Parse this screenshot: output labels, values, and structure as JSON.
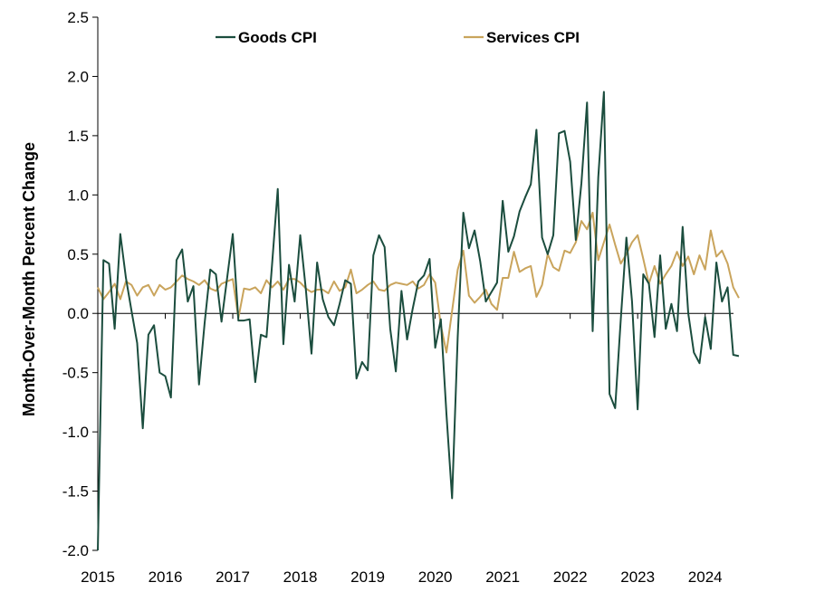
{
  "chart_data": {
    "type": "line",
    "title": "",
    "xlabel": "",
    "ylabel": "Month-Over-Month Percent Change",
    "ylim": [
      -2.0,
      2.5
    ],
    "xlim": [
      2015.0,
      2024.42
    ],
    "yticks": [
      "-2.0",
      "-1.5",
      "-1.0",
      "-0.5",
      "0.0",
      "0.5",
      "1.0",
      "1.5",
      "2.0",
      "2.5"
    ],
    "xticks": [
      "2015",
      "2016",
      "2017",
      "2018",
      "2019",
      "2020",
      "2021",
      "2022",
      "2023",
      "2024"
    ],
    "legend": "top",
    "colors": {
      "goods": "#1b4d3e",
      "services": "#c9a45c",
      "axis": "#000000"
    },
    "series": [
      {
        "name": "Goods CPI",
        "color": "#1b4d3e",
        "start": 2015.0,
        "step": 0.08333,
        "values": [
          -2.0,
          0.45,
          0.42,
          -0.13,
          0.67,
          0.3,
          0.02,
          -0.25,
          -0.97,
          -0.18,
          -0.1,
          -0.5,
          -0.53,
          -0.71,
          0.45,
          0.54,
          0.1,
          0.23,
          -0.6,
          -0.08,
          0.37,
          0.33,
          -0.07,
          0.3,
          0.67,
          -0.06,
          -0.06,
          -0.05,
          -0.58,
          -0.18,
          -0.2,
          0.42,
          1.05,
          -0.26,
          0.41,
          0.1,
          0.66,
          0.2,
          -0.34,
          0.43,
          0.12,
          -0.03,
          -0.1,
          0.08,
          0.28,
          0.25,
          -0.55,
          -0.41,
          -0.48,
          0.49,
          0.66,
          0.56,
          -0.13,
          -0.49,
          0.19,
          -0.22,
          0.04,
          0.27,
          0.32,
          0.46,
          -0.29,
          -0.05,
          -0.85,
          -1.56,
          -0.2,
          0.85,
          0.55,
          0.7,
          0.44,
          0.1,
          0.18,
          0.26,
          0.95,
          0.52,
          0.65,
          0.86,
          0.98,
          1.09,
          1.55,
          0.64,
          0.5,
          0.66,
          1.52,
          1.54,
          1.28,
          0.62,
          1.1,
          1.78,
          -0.15,
          1.15,
          1.87,
          -0.68,
          -0.8,
          -0.05,
          0.64,
          0.1,
          -0.81,
          0.33,
          0.25,
          -0.2,
          0.49,
          -0.13,
          0.08,
          -0.15,
          0.73,
          0.0,
          -0.33,
          -0.42,
          -0.03,
          -0.3,
          0.43,
          0.1,
          0.22,
          -0.35,
          -0.36
        ]
      },
      {
        "name": "Services CPI",
        "color": "#c9a45c",
        "start": 2015.0,
        "step": 0.08333,
        "values": [
          0.22,
          0.12,
          0.18,
          0.25,
          0.12,
          0.27,
          0.24,
          0.15,
          0.22,
          0.24,
          0.15,
          0.24,
          0.2,
          0.22,
          0.27,
          0.32,
          0.29,
          0.27,
          0.24,
          0.28,
          0.21,
          0.19,
          0.25,
          0.27,
          0.29,
          -0.04,
          0.21,
          0.2,
          0.22,
          0.17,
          0.28,
          0.22,
          0.27,
          0.2,
          0.29,
          0.29,
          0.26,
          0.21,
          0.18,
          0.2,
          0.2,
          0.17,
          0.27,
          0.19,
          0.22,
          0.37,
          0.17,
          0.2,
          0.24,
          0.27,
          0.2,
          0.19,
          0.24,
          0.26,
          0.25,
          0.24,
          0.27,
          0.21,
          0.24,
          0.33,
          0.26,
          -0.1,
          -0.33,
          0.02,
          0.37,
          0.53,
          0.15,
          0.09,
          0.14,
          0.2,
          0.08,
          0.03,
          0.3,
          0.3,
          0.52,
          0.35,
          0.38,
          0.4,
          0.14,
          0.24,
          0.5,
          0.39,
          0.36,
          0.53,
          0.51,
          0.6,
          0.78,
          0.71,
          0.85,
          0.45,
          0.6,
          0.75,
          0.58,
          0.42,
          0.5,
          0.6,
          0.66,
          0.46,
          0.25,
          0.4,
          0.25,
          0.33,
          0.4,
          0.52,
          0.4,
          0.48,
          0.33,
          0.49,
          0.37,
          0.7,
          0.48,
          0.53,
          0.42,
          0.22,
          0.13
        ]
      }
    ]
  }
}
